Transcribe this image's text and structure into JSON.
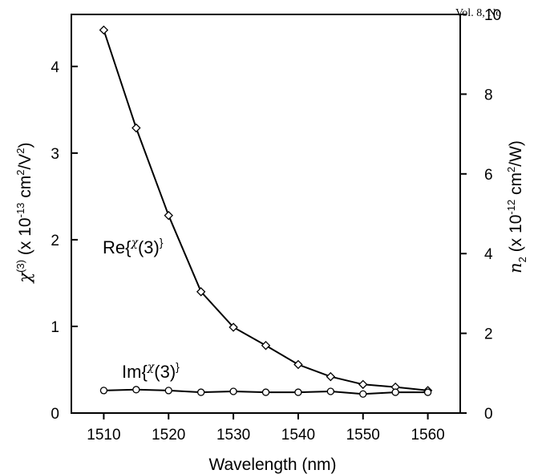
{
  "header": {
    "text": "Vol. 8, No"
  },
  "chart_data": {
    "type": "line",
    "x_axis": {
      "label": "Wavelength (nm)",
      "min": 1505,
      "max": 1565,
      "ticks": [
        1510,
        1520,
        1530,
        1540,
        1550,
        1560
      ]
    },
    "y_axis_left": {
      "label_parts": [
        "χ",
        "(3)",
        " (x 10",
        "-13",
        " cm",
        "2",
        "/V",
        "2",
        ")"
      ],
      "min": 0,
      "max": 4.6,
      "ticks": [
        0,
        1,
        2,
        3,
        4
      ]
    },
    "y_axis_right": {
      "label_parts": [
        "n",
        "2",
        " (x 10",
        "-12",
        " cm",
        "2",
        "/W)"
      ],
      "min": 0,
      "max": 10,
      "ticks": [
        0,
        2,
        4,
        6,
        8,
        10
      ]
    },
    "series": [
      {
        "name_parts": [
          "Re{",
          "χ",
          "(3)",
          "}"
        ],
        "marker": "diamond",
        "x": [
          1510,
          1515,
          1520,
          1525,
          1530,
          1535,
          1540,
          1545,
          1550,
          1555,
          1560
        ],
        "y": [
          4.42,
          3.29,
          2.28,
          1.4,
          0.99,
          0.78,
          0.56,
          0.42,
          0.33,
          0.3,
          0.26
        ]
      },
      {
        "name_parts": [
          "Im{",
          "χ",
          "(3)",
          "}"
        ],
        "marker": "circle",
        "x": [
          1510,
          1515,
          1520,
          1525,
          1530,
          1535,
          1540,
          1545,
          1550,
          1555,
          1560
        ],
        "y": [
          0.26,
          0.27,
          0.26,
          0.24,
          0.25,
          0.24,
          0.24,
          0.25,
          0.22,
          0.24,
          0.24
        ]
      }
    ],
    "grid": false
  }
}
